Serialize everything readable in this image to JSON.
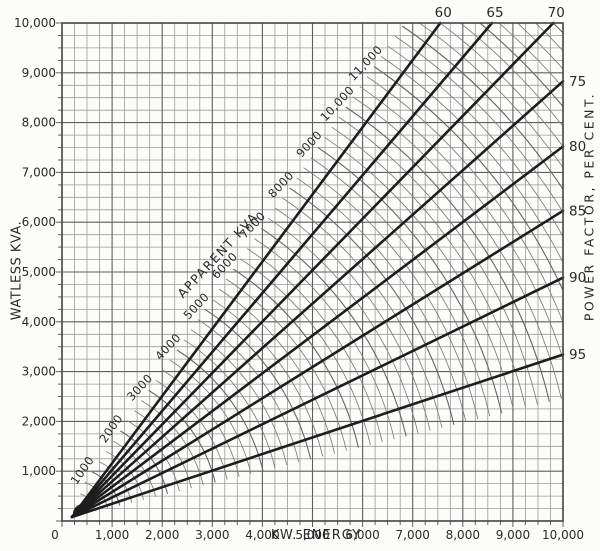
{
  "page": {
    "background": "#fcfcfa"
  },
  "chart_data": {
    "type": "line",
    "title": "",
    "xlabel": "KW. ENERGY",
    "ylabel": "WATLESS KVA.",
    "right_axis_label": "POWER FACTOR, PER CENT.",
    "fan_annotation": "APPARENT KVA",
    "xlim": [
      0,
      10000
    ],
    "ylim": [
      0,
      10000
    ],
    "grid": {
      "on": true,
      "minor_step": 250,
      "major_step": 1000
    },
    "x_ticks": {
      "values": [
        0,
        1000,
        2000,
        3000,
        4000,
        5000,
        6000,
        7000,
        8000,
        9000,
        10000
      ],
      "labels": [
        "0",
        "1,000",
        "2,000",
        "3,000",
        "4,000",
        "5,000",
        "6,000",
        "7,000",
        "8,000",
        "9,000",
        "10,000"
      ]
    },
    "y_ticks": {
      "values": [
        1000,
        2000,
        3000,
        4000,
        5000,
        6000,
        7000,
        8000,
        9000,
        10000
      ],
      "labels": [
        "1,000",
        "2,000",
        "3,000",
        "4,000",
        "5,000",
        "6,000",
        "7,000",
        "8,000",
        "9,000",
        "10,000"
      ]
    },
    "power_factor_lines": [
      {
        "percent": 60,
        "label": "60"
      },
      {
        "percent": 65,
        "label": "65"
      },
      {
        "percent": 70,
        "label": "70"
      },
      {
        "percent": 75,
        "label": "75"
      },
      {
        "percent": 80,
        "label": "80"
      },
      {
        "percent": 85,
        "label": "85"
      },
      {
        "percent": 90,
        "label": "90"
      },
      {
        "percent": 95,
        "label": "95"
      }
    ],
    "power_factor_definition": "watless_kva = kw_energy * tan(acos(percent/100))",
    "apparent_kva_arcs": {
      "definition": "apparent_kva = sqrt(kw_energy^2 + watless_kva^2)",
      "minor_step": 250,
      "max": 14000,
      "labeled": [
        {
          "kva": 1000,
          "label": "1000"
        },
        {
          "kva": 2000,
          "label": "2000"
        },
        {
          "kva": 3000,
          "label": "3000"
        },
        {
          "kva": 4000,
          "label": "4000"
        },
        {
          "kva": 5000,
          "label": "5000"
        },
        {
          "kva": 6000,
          "label": "6000"
        },
        {
          "kva": 7000,
          "label": "7000"
        },
        {
          "kva": 8000,
          "label": "8000"
        },
        {
          "kva": 9000,
          "label": "9000"
        },
        {
          "kva": 10000,
          "label": "10,000"
        },
        {
          "kva": 11000,
          "label": "11,000"
        }
      ]
    },
    "colors": {
      "ink": "#2a2a2a",
      "line": "#1d1d1d",
      "grid_minor": "#9b9b9b",
      "grid_major": "#5f5f5f",
      "arc_minor": "#7d7d7d",
      "arc_major": "#666666",
      "border": "#444444",
      "background": "#fcfcfa"
    }
  }
}
